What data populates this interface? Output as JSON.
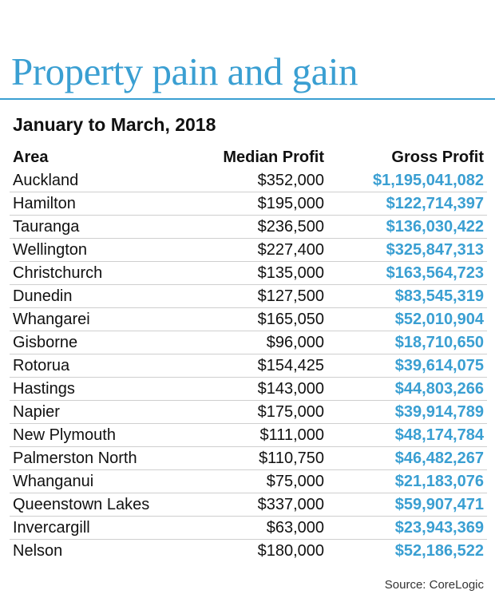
{
  "title": "Property pain and gain",
  "subtitle": "January to March, 2018",
  "source": "Source: CoreLogic",
  "colors": {
    "accent": "#3a9fd2",
    "text": "#111111",
    "divider": "#cfcfcf"
  },
  "chart_data": {
    "type": "table",
    "title": "Property pain and gain",
    "subtitle": "January to March, 2018",
    "columns": [
      "Area",
      "Median Profit",
      "Gross Profit"
    ],
    "rows": [
      [
        "Auckland",
        "$352,000",
        "$1,195,041,082"
      ],
      [
        "Hamilton",
        "$195,000",
        "$122,714,397"
      ],
      [
        "Tauranga",
        "$236,500",
        "$136,030,422"
      ],
      [
        "Wellington",
        "$227,400",
        "$325,847,313"
      ],
      [
        "Christchurch",
        "$135,000",
        "$163,564,723"
      ],
      [
        "Dunedin",
        "$127,500",
        "$83,545,319"
      ],
      [
        "Whangarei",
        "$165,050",
        "$52,010,904"
      ],
      [
        "Gisborne",
        "$96,000",
        "$18,710,650"
      ],
      [
        "Rotorua",
        "$154,425",
        "$39,614,075"
      ],
      [
        "Hastings",
        "$143,000",
        "$44,803,266"
      ],
      [
        "Napier",
        "$175,000",
        "$39,914,789"
      ],
      [
        "New Plymouth",
        "$111,000",
        "$48,174,784"
      ],
      [
        "Palmerston North",
        "$110,750",
        "$46,482,267"
      ],
      [
        "Whanganui",
        "$75,000",
        "$21,183,076"
      ],
      [
        "Queenstown Lakes",
        "$337,000",
        "$59,907,471"
      ],
      [
        "Invercargill",
        "$63,000",
        "$23,943,369"
      ],
      [
        "Nelson",
        "$180,000",
        "$52,186,522"
      ]
    ],
    "source": "Source: CoreLogic"
  }
}
